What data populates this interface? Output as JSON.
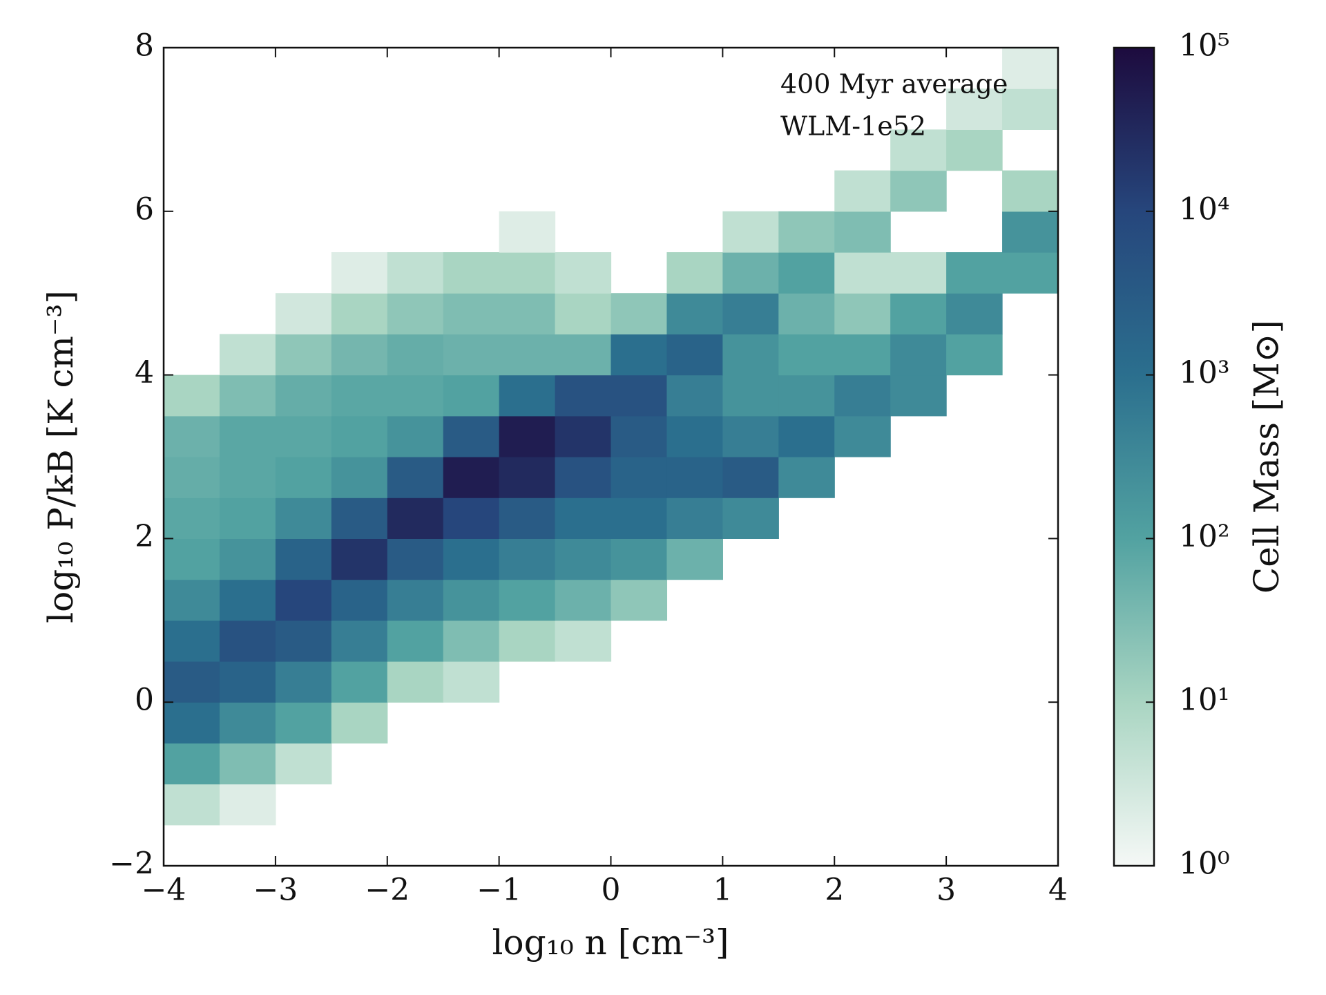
{
  "chart_data": {
    "type": "heatmap",
    "xlabel": "log₁₀ n [cm⁻³]",
    "ylabel": "log₁₀ P/kB [K cm⁻³]",
    "colorbar_label": "Cell Mass [M⊙]",
    "annotations": [
      "400 Myr average",
      "WLM-1e52"
    ],
    "xbins": [
      -4,
      -3.5,
      -3,
      -2.5,
      -2,
      -1.5,
      -1,
      -0.5,
      0,
      0.5,
      1,
      1.5,
      2,
      2.5,
      3,
      3.5,
      4
    ],
    "ybins": [
      -2,
      -1.5,
      -1,
      -0.5,
      0,
      0.5,
      1,
      1.5,
      2,
      2.5,
      3,
      3.5,
      4,
      4.5,
      5,
      5.5,
      6,
      6.5,
      7,
      7.5,
      8
    ],
    "z": [
      [
        null,
        null,
        null,
        null,
        null,
        null,
        null,
        null,
        null,
        null,
        null,
        null,
        null,
        null,
        null,
        null
      ],
      [
        5,
        2,
        null,
        null,
        null,
        null,
        null,
        null,
        null,
        null,
        null,
        null,
        null,
        null,
        null,
        null
      ],
      [
        100,
        30,
        5,
        null,
        null,
        null,
        null,
        null,
        null,
        null,
        null,
        null,
        null,
        null,
        null,
        null
      ],
      [
        1000,
        300,
        100,
        10,
        null,
        null,
        null,
        null,
        null,
        null,
        null,
        null,
        null,
        null,
        null,
        null
      ],
      [
        3000,
        2000,
        500,
        100,
        10,
        5,
        null,
        null,
        null,
        null,
        null,
        null,
        null,
        null,
        null,
        null
      ],
      [
        1000,
        5000,
        3000,
        500,
        100,
        30,
        10,
        5,
        null,
        null,
        null,
        null,
        null,
        null,
        null,
        null
      ],
      [
        300,
        1000,
        10000,
        2000,
        500,
        200,
        100,
        50,
        20,
        null,
        null,
        null,
        null,
        null,
        null,
        null
      ],
      [
        100,
        200,
        2000,
        20000,
        3000,
        1000,
        500,
        300,
        200,
        50,
        null,
        null,
        null,
        null,
        null,
        null
      ],
      [
        80,
        100,
        300,
        3000,
        30000,
        10000,
        3000,
        1000,
        1000,
        500,
        300,
        null,
        null,
        null,
        null,
        null
      ],
      [
        60,
        80,
        100,
        200,
        3000,
        50000,
        30000,
        5000,
        2000,
        2000,
        3000,
        300,
        null,
        null,
        null,
        null
      ],
      [
        50,
        80,
        80,
        100,
        200,
        3000,
        50000,
        20000,
        3000,
        1000,
        500,
        1000,
        300,
        null,
        null,
        null
      ],
      [
        10,
        30,
        60,
        80,
        80,
        100,
        1000,
        5000,
        5000,
        500,
        200,
        200,
        500,
        300,
        null,
        null
      ],
      [
        null,
        5,
        20,
        40,
        60,
        50,
        50,
        50,
        1000,
        2000,
        200,
        100,
        100,
        300,
        100,
        null
      ],
      [
        null,
        null,
        3,
        10,
        20,
        30,
        30,
        10,
        20,
        300,
        500,
        50,
        20,
        100,
        300,
        null
      ],
      [
        null,
        null,
        null,
        2,
        5,
        10,
        10,
        5,
        null,
        10,
        50,
        100,
        5,
        5,
        100,
        100
      ],
      [
        null,
        null,
        null,
        null,
        null,
        null,
        2,
        null,
        null,
        null,
        5,
        20,
        30,
        null,
        null,
        200
      ],
      [
        null,
        null,
        null,
        null,
        null,
        null,
        null,
        null,
        null,
        null,
        null,
        null,
        5,
        20,
        null,
        10
      ],
      [
        null,
        null,
        null,
        null,
        null,
        null,
        null,
        null,
        null,
        null,
        null,
        null,
        null,
        5,
        10,
        null
      ],
      [
        null,
        null,
        null,
        null,
        null,
        null,
        null,
        null,
        null,
        null,
        null,
        null,
        null,
        null,
        3,
        5
      ],
      [
        null,
        null,
        null,
        null,
        null,
        null,
        null,
        null,
        null,
        null,
        null,
        null,
        null,
        null,
        null,
        2
      ]
    ],
    "xlim": [
      -4,
      4
    ],
    "ylim": [
      -2,
      8
    ],
    "xticks": [
      {
        "value": -4,
        "label": "−4"
      },
      {
        "value": -3,
        "label": "−3"
      },
      {
        "value": -2,
        "label": "−2"
      },
      {
        "value": -1,
        "label": "−1"
      },
      0,
      1,
      2,
      3,
      4
    ],
    "yticks": [
      {
        "value": -2,
        "label": "−2"
      },
      0,
      2,
      4,
      6,
      8
    ],
    "clim": [
      1,
      100000
    ],
    "clog": true,
    "cticks": [
      {
        "value": 1,
        "label": "10⁰"
      },
      {
        "value": 10,
        "label": "10¹"
      },
      {
        "value": 100,
        "label": "10²"
      },
      {
        "value": 1000,
        "label": "10³"
      },
      {
        "value": 10000,
        "label": "10⁴"
      },
      {
        "value": 100000,
        "label": "10⁵"
      }
    ],
    "colormap": [
      "#f5f8f6",
      "#a9d5c2",
      "#52a2a1",
      "#2b6f8e",
      "#26467c",
      "#1d0b3e"
    ]
  }
}
